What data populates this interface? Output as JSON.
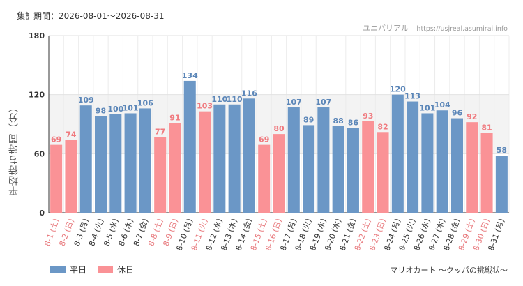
{
  "period": "集計期間：2026-08-01〜2026-08-31",
  "site_name": "ユニバリアル",
  "site_url": "https://usjreal.asumirai.info",
  "attraction": "マリオカート 〜クッパの挑戦状〜",
  "colors": {
    "weekday": "#6b97c6",
    "holiday": "#fa9296",
    "holiday_text": "#e8787c",
    "weekday_text": "#333333",
    "value_weekday": "#5b86b8",
    "value_holiday": "#f07a7f"
  },
  "chart_data": {
    "type": "bar",
    "ylabel": "平均待ち時間（分）",
    "ylim": [
      0,
      180
    ],
    "yticks": [
      0,
      60,
      120,
      180
    ],
    "grid": true,
    "legend_position": "bottom-left",
    "legend": [
      {
        "key": "weekday",
        "label": "平日"
      },
      {
        "key": "holiday",
        "label": "休日"
      }
    ],
    "categories": [
      "8-1 (土)",
      "8-2 (日)",
      "8-3 (月)",
      "8-4 (火)",
      "8-5 (水)",
      "8-6 (木)",
      "8-7 (金)",
      "8-8 (土)",
      "8-9 (日)",
      "8-10 (月)",
      "8-11 (火)",
      "8-12 (水)",
      "8-13 (木)",
      "8-14 (金)",
      "8-15 (土)",
      "8-16 (日)",
      "8-17 (月)",
      "8-18 (火)",
      "8-19 (水)",
      "8-20 (木)",
      "8-21 (金)",
      "8-22 (土)",
      "8-23 (日)",
      "8-24 (月)",
      "8-25 (火)",
      "8-26 (水)",
      "8-27 (木)",
      "8-28 (金)",
      "8-29 (土)",
      "8-30 (日)",
      "8-31 (月)"
    ],
    "values": [
      69,
      74,
      109,
      98,
      100,
      101,
      106,
      77,
      91,
      134,
      103,
      110,
      110,
      116,
      69,
      80,
      107,
      89,
      107,
      88,
      86,
      93,
      82,
      120,
      113,
      101,
      104,
      96,
      92,
      81,
      58
    ],
    "day_type": [
      "holiday",
      "holiday",
      "weekday",
      "weekday",
      "weekday",
      "weekday",
      "weekday",
      "holiday",
      "holiday",
      "weekday",
      "holiday",
      "weekday",
      "weekday",
      "weekday",
      "holiday",
      "holiday",
      "weekday",
      "weekday",
      "weekday",
      "weekday",
      "weekday",
      "holiday",
      "holiday",
      "weekday",
      "weekday",
      "weekday",
      "weekday",
      "weekday",
      "holiday",
      "holiday",
      "weekday"
    ]
  }
}
